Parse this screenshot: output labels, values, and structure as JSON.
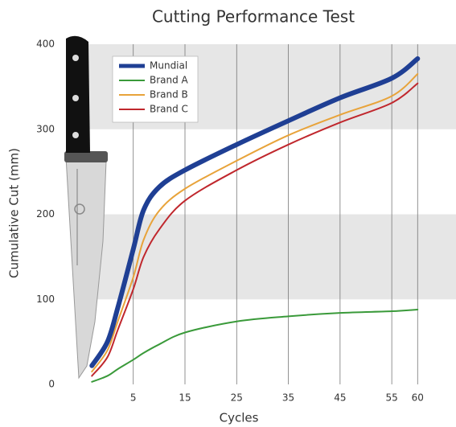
{
  "chart_data": {
    "type": "line",
    "title": "Cutting Performance Test",
    "x_label": "Cycles",
    "y_label": "Cumulative Cut (mm)",
    "x": [
      -3,
      0,
      2,
      5,
      7,
      10,
      15,
      25,
      35,
      45,
      55,
      60
    ],
    "series": [
      {
        "name": "Mundial",
        "color": "#1f3f94",
        "values": [
          22,
          50,
          90,
          159,
          205,
          232,
          252,
          282,
          310,
          337,
          360,
          383
        ]
      },
      {
        "name": "Brand A",
        "color": "#3a9a3a",
        "values": [
          3,
          10,
          18,
          29,
          37,
          47,
          61,
          74,
          80,
          84,
          86,
          88
        ]
      },
      {
        "name": "Brand B",
        "color": "#e8a33a",
        "values": [
          15,
          40,
          74,
          126,
          170,
          204,
          230,
          263,
          293,
          317,
          339,
          365
        ]
      },
      {
        "name": "Brand C",
        "color": "#c0272d",
        "values": [
          10,
          32,
          64,
          112,
          150,
          182,
          216,
          252,
          282,
          308,
          331,
          354
        ]
      }
    ],
    "xlim": [
      -6,
      64
    ],
    "xticks": [
      5,
      15,
      25,
      35,
      45,
      55,
      60
    ],
    "ylim": [
      0,
      400
    ],
    "yticks": [
      0,
      100,
      200,
      300,
      400
    ],
    "grid": true,
    "legend": "upper left"
  }
}
